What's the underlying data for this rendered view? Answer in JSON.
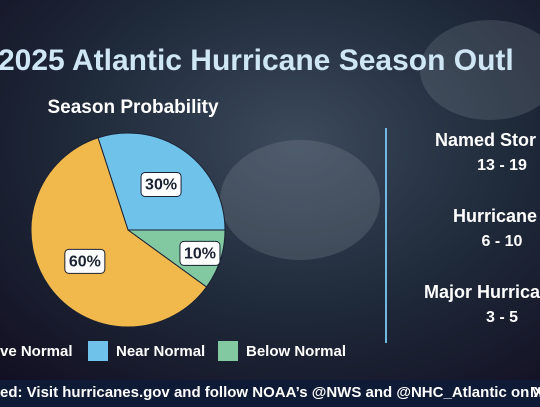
{
  "header": {
    "title": "2025 Atlantic Hurricane Season Outl"
  },
  "chart_data": {
    "type": "pie",
    "title": "Season Probability",
    "categories": [
      "ve Normal",
      "Near Normal",
      "Below Normal"
    ],
    "values": [
      60,
      30,
      10
    ],
    "value_labels": [
      "60%",
      "30%",
      "10%"
    ],
    "colors": [
      "#f1b84c",
      "#6fc2ea",
      "#82c9a2"
    ]
  },
  "stats": [
    {
      "label": "Named Stor",
      "range": "13 - 19"
    },
    {
      "label": "Hurricane",
      "range": "6 - 10"
    },
    {
      "label": "Major Hurrica",
      "range": "3 - 5"
    }
  ],
  "footer": {
    "text": "ed: Visit hurricanes.gov and follow NOAA’s @NWS and @NHC_Atlantic on X.",
    "right": "M"
  }
}
